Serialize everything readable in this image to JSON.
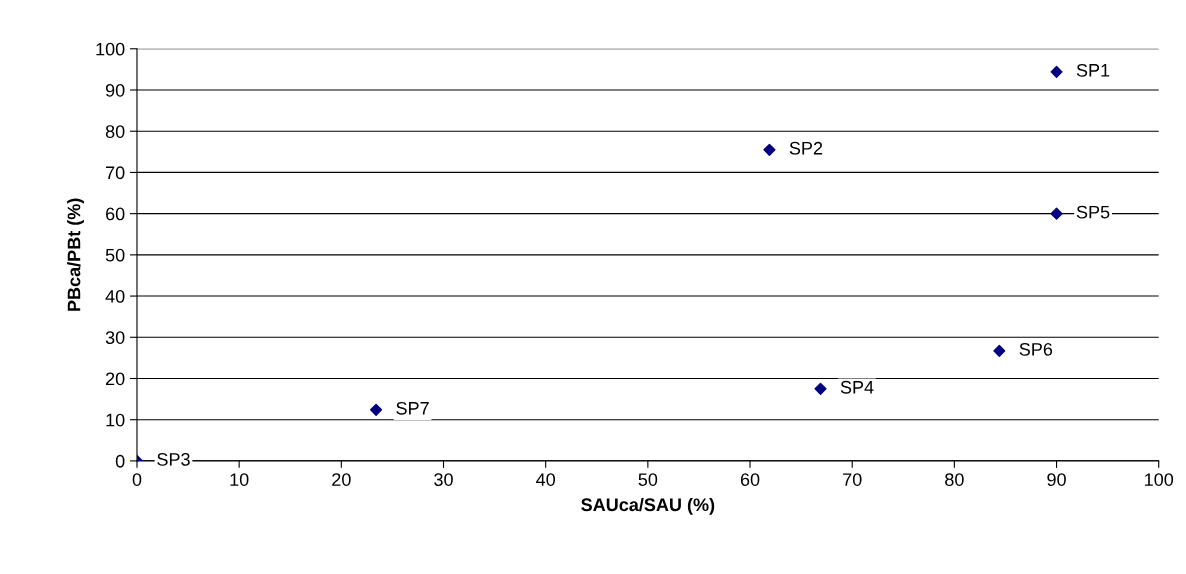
{
  "chart_data": {
    "type": "scatter",
    "xlabel": "SAUca/SAU (%)",
    "ylabel": "PBca/PBt (%)",
    "x": [
      90,
      61.9,
      0,
      66.9,
      90,
      84.4,
      23.4
    ],
    "series": [
      {
        "color": "#000080",
        "values": [
          94.4,
          75.5,
          0,
          17.5,
          60,
          26.7,
          12.4
        ]
      }
    ],
    "annotations": [
      {
        "text": "SP1",
        "x": 90,
        "y": 94.4
      },
      {
        "text": "SP2",
        "x": 61.9,
        "y": 75.5
      },
      {
        "text": "SP3",
        "x": 0,
        "y": 0
      },
      {
        "text": "SP4",
        "x": 66.9,
        "y": 17.5
      },
      {
        "text": "SP5",
        "x": 90,
        "y": 60
      },
      {
        "text": "SP6",
        "x": 84.4,
        "y": 26.7
      },
      {
        "text": "SP7",
        "x": 23.4,
        "y": 12.4
      }
    ],
    "xlim": [
      0,
      100
    ],
    "xticks": [
      0,
      10,
      20,
      30,
      40,
      50,
      60,
      70,
      80,
      90,
      100
    ],
    "ylim": [
      0,
      100
    ],
    "yticks": [
      0,
      10,
      20,
      30,
      40,
      50,
      60,
      70,
      80,
      90,
      100
    ],
    "grid": "y",
    "legend": false,
    "marker": "diamond"
  }
}
